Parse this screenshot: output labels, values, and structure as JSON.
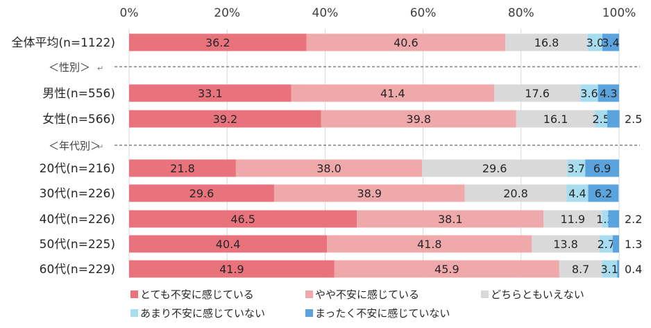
{
  "chart_data": {
    "type": "bar",
    "orientation": "horizontal",
    "stacked": true,
    "xlim": [
      0,
      100
    ],
    "x_ticks": [
      "0%",
      "20%",
      "40%",
      "60%",
      "80%",
      "100%"
    ],
    "grid": true,
    "legend_position": "bottom",
    "rows": [
      {
        "kind": "bar",
        "label": "全体平均(n=1122)",
        "values": [
          36.2,
          40.6,
          16.8,
          3.0,
          3.4
        ]
      },
      {
        "kind": "section",
        "label": "＜性別＞",
        "mark": "↵"
      },
      {
        "kind": "bar",
        "label": "男性(n=556)",
        "values": [
          33.1,
          41.4,
          17.6,
          3.6,
          4.3
        ]
      },
      {
        "kind": "bar",
        "label": "女性(n=566)",
        "values": [
          39.2,
          39.8,
          16.1,
          2.5,
          2.5
        ]
      },
      {
        "kind": "section",
        "label": "＜年代別＞",
        "mark": "↵"
      },
      {
        "kind": "bar",
        "label": "20代(n=216)",
        "values": [
          21.8,
          38.0,
          29.6,
          3.7,
          6.9
        ]
      },
      {
        "kind": "bar",
        "label": "30代(n=226)",
        "values": [
          29.6,
          38.9,
          20.8,
          4.4,
          6.2
        ]
      },
      {
        "kind": "bar",
        "label": "40代(n=226)",
        "values": [
          46.5,
          38.1,
          11.9,
          1.3,
          2.2
        ]
      },
      {
        "kind": "bar",
        "label": "50代(n=225)",
        "values": [
          40.4,
          41.8,
          13.8,
          2.7,
          1.3
        ]
      },
      {
        "kind": "bar",
        "label": "60代(n=229)",
        "values": [
          41.9,
          45.9,
          8.7,
          3.1,
          0.4
        ]
      }
    ],
    "series": [
      {
        "name": "とても不安に感じている",
        "color": "#e8737c"
      },
      {
        "name": "やや不安に感じている",
        "color": "#f0a9ab"
      },
      {
        "name": "どちらともいえない",
        "color": "#d9d9d9"
      },
      {
        "name": "あまり不安に感じていない",
        "color": "#a8ddf0"
      },
      {
        "name": "まったく不安に感じていない",
        "color": "#5aa3dc"
      }
    ]
  }
}
